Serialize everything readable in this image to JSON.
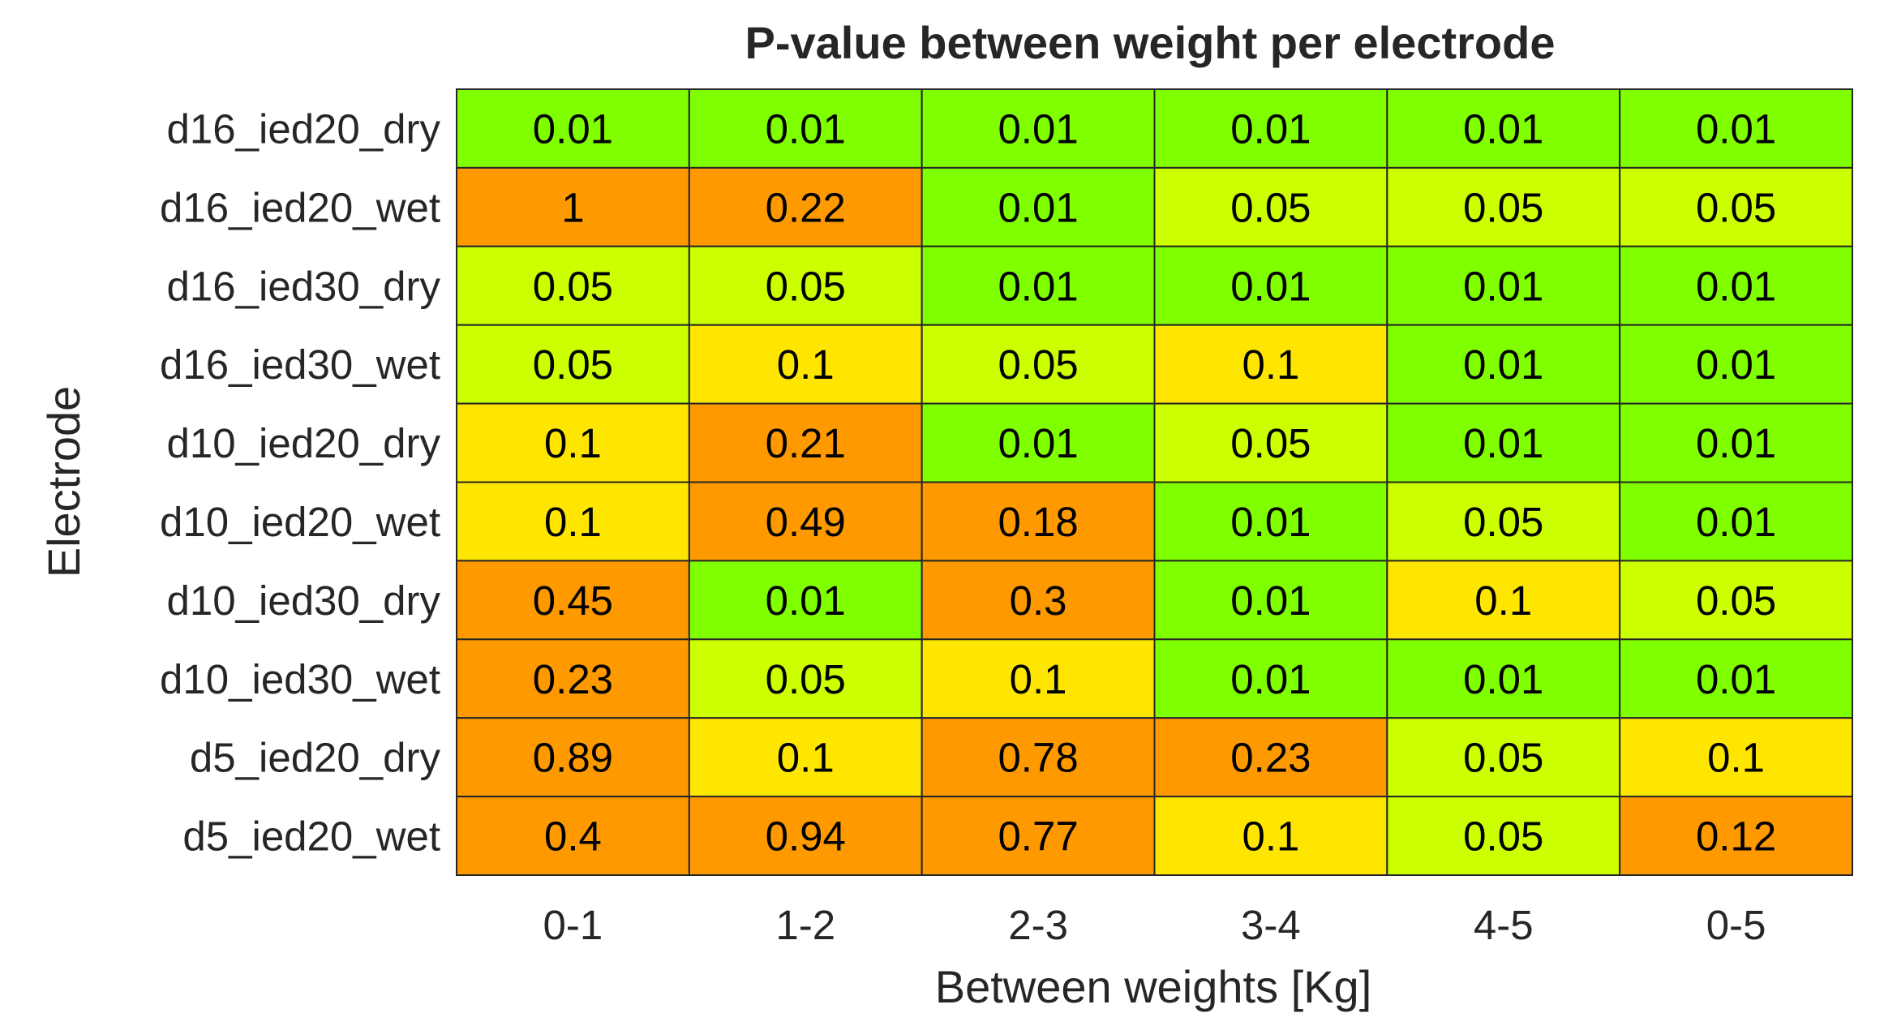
{
  "chart_data": {
    "type": "heatmap",
    "title": "P-value between weight per electrode",
    "xlabel": "Between weights [Kg]",
    "ylabel": "Electrode",
    "x_categories": [
      "0-1",
      "1-2",
      "2-3",
      "3-4",
      "4-5",
      "0-5"
    ],
    "y_categories": [
      "d16_ied20_dry",
      "d16_ied20_wet",
      "d16_ied30_dry",
      "d16_ied30_wet",
      "d10_ied20_dry",
      "d10_ied20_wet",
      "d10_ied30_dry",
      "d10_ied30_wet",
      "d5_ied20_dry",
      "d5_ied20_wet"
    ],
    "values": [
      [
        "0.01",
        "0.01",
        "0.01",
        "0.01",
        "0.01",
        "0.01"
      ],
      [
        "1",
        "0.22",
        "0.01",
        "0.05",
        "0.05",
        "0.05"
      ],
      [
        "0.05",
        "0.05",
        "0.01",
        "0.01",
        "0.01",
        "0.01"
      ],
      [
        "0.05",
        "0.1",
        "0.05",
        "0.1",
        "0.01",
        "0.01"
      ],
      [
        "0.1",
        "0.21",
        "0.01",
        "0.05",
        "0.01",
        "0.01"
      ],
      [
        "0.1",
        "0.49",
        "0.18",
        "0.01",
        "0.05",
        "0.01"
      ],
      [
        "0.45",
        "0.01",
        "0.3",
        "0.01",
        "0.1",
        "0.05"
      ],
      [
        "0.23",
        "0.05",
        "0.1",
        "0.01",
        "0.01",
        "0.01"
      ],
      [
        "0.89",
        "0.1",
        "0.78",
        "0.23",
        "0.05",
        "0.1"
      ],
      [
        "0.4",
        "0.94",
        "0.77",
        "0.1",
        "0.05",
        "0.12"
      ]
    ],
    "colors": {
      "0.01": "#80ff00",
      "0.05": "#ccff00",
      "0.1": "#ffe600",
      "above": "#ff9900"
    },
    "grid_color": "#262626"
  }
}
